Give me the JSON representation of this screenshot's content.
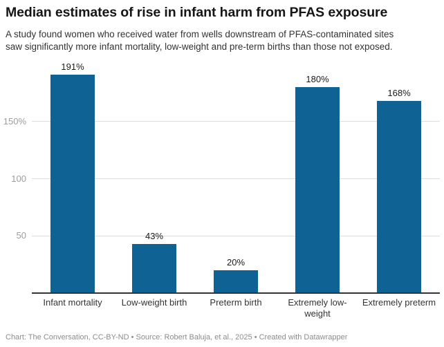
{
  "header": {
    "title": "Median estimates of rise in infant harm from PFAS exposure",
    "subtitle_line1": "A study found women who received water from wells downstream of PFAS-contaminated sites",
    "subtitle_line2": "saw significantly more infant mortality, low-weight and pre-term births than those not exposed."
  },
  "chart_data": {
    "type": "bar",
    "title": "Median estimates of rise in infant harm from PFAS exposure",
    "subtitle": "A study found women who received water from wells downstream of PFAS-contaminated sites saw significantly more infant mortality, low-weight and pre-term births than those not exposed.",
    "categories": [
      "Infant mortality",
      "Low-weight birth",
      "Preterm birth",
      "Extremely low-weight",
      "Extremely preterm"
    ],
    "values": [
      191,
      43,
      20,
      180,
      168
    ],
    "value_labels": [
      "191%",
      "43%",
      "20%",
      "180%",
      "168%"
    ],
    "xlabel": "",
    "ylabel": "",
    "ylim": [
      0,
      200
    ],
    "yticks": [
      {
        "value": 50,
        "label": "50"
      },
      {
        "value": 100,
        "label": "100"
      },
      {
        "value": 150,
        "label": "150%"
      }
    ],
    "grid": "horizontal",
    "legend": "none",
    "bar_color": "#0e6294"
  },
  "colors": {
    "bar": "#0e6294",
    "gridline": "#dcdcdc",
    "axis_line": "#333333",
    "tick_label": "#9d9d9d",
    "value_label": "#1a1a1a",
    "category_label": "#333333",
    "background": "#ffffff"
  },
  "footer": {
    "text": "Chart: The Conversation, CC-BY-ND • Source: Robert Baluja, et al., 2025 • Created with Datawrapper"
  }
}
